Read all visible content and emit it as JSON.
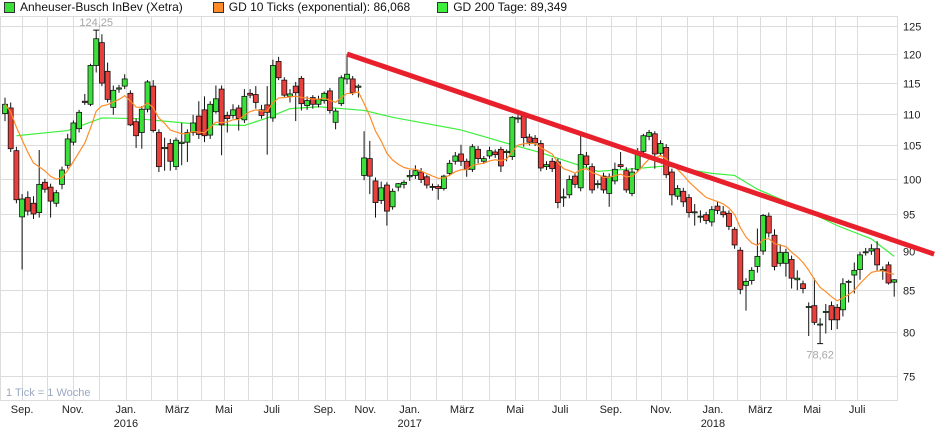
{
  "legend": {
    "series_label": "Anheuser-Busch InBev (Xetra)",
    "ema_label": "GD 10 Ticks (exponential): 86,068",
    "sma_label": "GD 200 Tage: 89,349"
  },
  "colors": {
    "up": "#3be03b",
    "down": "#e8403c",
    "ema": "#ff8c28",
    "sma": "#3cf03c",
    "trendline": "#e8202c",
    "grid": "#dcdcdc"
  },
  "chart_data": {
    "type": "candlestick",
    "scale": "log",
    "interval_note": "1 Tick = 1 Woche",
    "ylim": [
      72.4,
      126.8
    ],
    "yticks": [
      75,
      80,
      85,
      90,
      95,
      100,
      105,
      110,
      115,
      120,
      125
    ],
    "grid": true,
    "legend_position": "top",
    "xticks": [
      {
        "label": "Sep.",
        "year": "",
        "week": 4
      },
      {
        "label": "Nov.",
        "year": "",
        "week": 12.9
      },
      {
        "label": "Jan.",
        "year": "2016",
        "week": 22.2
      },
      {
        "label": "März",
        "year": "",
        "week": 31.2
      },
      {
        "label": "Mai",
        "year": "",
        "week": 39.4
      },
      {
        "label": "Juli",
        "year": "",
        "week": 47.8
      },
      {
        "label": "Sep.",
        "year": "",
        "week": 57.1
      },
      {
        "label": "Nov.",
        "year": "",
        "week": 64.2
      },
      {
        "label": "Jan.",
        "year": "2017",
        "week": 72
      },
      {
        "label": "März",
        "year": "",
        "week": 81.2
      },
      {
        "label": "Mai",
        "year": "",
        "week": 90.5
      },
      {
        "label": "Juli",
        "year": "",
        "week": 98.4
      },
      {
        "label": "Sep.",
        "year": "",
        "week": 107.3
      },
      {
        "label": "Nov.",
        "year": "",
        "week": 116.1
      },
      {
        "label": "Jan.",
        "year": "2018",
        "week": 125.2
      },
      {
        "label": "März",
        "year": "",
        "week": 133.5
      },
      {
        "label": "Mai",
        "year": "",
        "week": 142.6
      },
      {
        "label": "Juli",
        "year": "",
        "week": 150.5
      }
    ],
    "annotations": {
      "max": {
        "label": "124,25",
        "week": 17,
        "value": 124.25
      },
      "min": {
        "label": "78,62",
        "week": 144,
        "value": 78.62
      }
    },
    "ohlc_fields": [
      "open",
      "high",
      "low",
      "close"
    ],
    "ohlc": [
      [
        110,
        112.6,
        108.8,
        111.5
      ],
      [
        110.9,
        111.8,
        104,
        104.5
      ],
      [
        104.2,
        104.8,
        96.5,
        97
      ],
      [
        94.6,
        97.8,
        87.6,
        97.1
      ],
      [
        97.3,
        98.2,
        94.8,
        95.4
      ],
      [
        96.5,
        97.5,
        94.3,
        95
      ],
      [
        95.2,
        104.3,
        94.5,
        99.2
      ],
      [
        99.5,
        100,
        98,
        98.5
      ],
      [
        98.8,
        99.3,
        94.5,
        96.8
      ],
      [
        96.5,
        98.4,
        96,
        98
      ],
      [
        99.2,
        101.8,
        98.5,
        101.3
      ],
      [
        102,
        106.8,
        101.5,
        106
      ],
      [
        105.5,
        108.9,
        105,
        108.5
      ],
      [
        107.6,
        110.6,
        107,
        110.2
      ],
      [
        112,
        113.2,
        111.4,
        111.8
      ],
      [
        111.5,
        118.3,
        111.2,
        118
      ],
      [
        118,
        124.25,
        116.8,
        122.7
      ],
      [
        122,
        123.5,
        114.5,
        115
      ],
      [
        117,
        118.5,
        111.8,
        112.3
      ],
      [
        111,
        114.6,
        109.8,
        113.8
      ],
      [
        114,
        114.7,
        113.4,
        114.2
      ],
      [
        114.5,
        116.5,
        114,
        115.7
      ],
      [
        113.3,
        113.8,
        108,
        108.2
      ],
      [
        108.7,
        109.2,
        104.6,
        106.5
      ],
      [
        107,
        111.2,
        104.5,
        110.7
      ],
      [
        110.7,
        115.5,
        110.2,
        115.2
      ],
      [
        114.5,
        115.5,
        107,
        107.3
      ],
      [
        107,
        107.5,
        101,
        101.8
      ],
      [
        104.5,
        106.2,
        101.2,
        104.7
      ],
      [
        105.3,
        106,
        101.2,
        102.6
      ],
      [
        101.8,
        106.2,
        101.3,
        105.8
      ],
      [
        105.3,
        108.5,
        102,
        105.5
      ],
      [
        105.5,
        107.5,
        102.5,
        107
      ],
      [
        107,
        109.8,
        106.5,
        108.5
      ],
      [
        109.6,
        112,
        106,
        106.7
      ],
      [
        110.6,
        112.8,
        105.5,
        106.5
      ],
      [
        106.6,
        112,
        106,
        111.5
      ],
      [
        110.3,
        114.6,
        110,
        112.4
      ],
      [
        114,
        114.6,
        103.5,
        108.2
      ],
      [
        109.7,
        110.3,
        107,
        109.2
      ],
      [
        109.7,
        111.5,
        109.2,
        110.6
      ],
      [
        110.9,
        111.4,
        107.3,
        109.2
      ],
      [
        109,
        114,
        108.5,
        112.8
      ],
      [
        113.3,
        114,
        112.5,
        113
      ],
      [
        113.1,
        114.5,
        110.8,
        111.8
      ],
      [
        110.6,
        111.4,
        109.2,
        109.7
      ],
      [
        111.4,
        114.5,
        103.6,
        110.2
      ],
      [
        109.3,
        119,
        108.7,
        118
      ],
      [
        118.7,
        119.5,
        115.5,
        115.9
      ],
      [
        115.5,
        116,
        112.7,
        113
      ],
      [
        112.8,
        114,
        111.8,
        113.2
      ],
      [
        114.5,
        115.2,
        108.8,
        113.4
      ],
      [
        115.8,
        116.2,
        110.5,
        111.6
      ],
      [
        111.3,
        112.8,
        110.6,
        112.1
      ],
      [
        112.6,
        113,
        110.8,
        111.5
      ],
      [
        111.5,
        112.9,
        111,
        112.3
      ],
      [
        112.1,
        113.6,
        111.6,
        113.3
      ],
      [
        113.7,
        114.2,
        110,
        110.5
      ],
      [
        108.6,
        110.8,
        107.5,
        110.4
      ],
      [
        111.6,
        116.3,
        111.2,
        115.9
      ],
      [
        115.7,
        120,
        114.8,
        116.5
      ],
      [
        115.7,
        116.2,
        113,
        113.4
      ],
      [
        114.3,
        114.8,
        112.6,
        114.5
      ],
      [
        100.5,
        107.2,
        99.8,
        103.1
      ],
      [
        103,
        105.7,
        97.8,
        100.4
      ],
      [
        99.7,
        100.2,
        94.5,
        96.6
      ],
      [
        96.9,
        99.6,
        96.4,
        98.7
      ],
      [
        99.1,
        99.5,
        93.4,
        95.4
      ],
      [
        96,
        98.6,
        95.6,
        98.2
      ],
      [
        98.8,
        99.4,
        98.2,
        99.3
      ],
      [
        99.2,
        99.8,
        98.6,
        99.5
      ],
      [
        100.3,
        101.3,
        99.7,
        100.5
      ],
      [
        100.5,
        102,
        100,
        101.2
      ],
      [
        101,
        101.6,
        99.4,
        99.9
      ],
      [
        100.3,
        100.6,
        98.6,
        99.1
      ],
      [
        98.9,
        99.3,
        98.3,
        98.8
      ],
      [
        98.9,
        99.2,
        97,
        98.6
      ],
      [
        98.6,
        100.6,
        98.3,
        100.4
      ],
      [
        100.8,
        102.8,
        100.4,
        102.3
      ],
      [
        102.6,
        104,
        102.1,
        103.4
      ],
      [
        103.7,
        105.1,
        101.9,
        102.6
      ],
      [
        102.6,
        103,
        100.3,
        101.4
      ],
      [
        101.4,
        105.2,
        101,
        104.8
      ],
      [
        104.4,
        104.9,
        102.3,
        103
      ],
      [
        102.6,
        103.4,
        102.2,
        103
      ],
      [
        103.4,
        104.8,
        103,
        104.2
      ],
      [
        104,
        104.4,
        103.1,
        103.6
      ],
      [
        104.4,
        104.8,
        101,
        101.9
      ],
      [
        103.9,
        104.4,
        102.6,
        104.1
      ],
      [
        103.3,
        109.6,
        102.8,
        109.4
      ],
      [
        109.3,
        110,
        108.5,
        109.3
      ],
      [
        109.6,
        110,
        104.8,
        106.2
      ],
      [
        106.3,
        106.8,
        105,
        105.5
      ],
      [
        106.1,
        106.6,
        104.9,
        105.4
      ],
      [
        105.3,
        105.8,
        101.1,
        101.6
      ],
      [
        101.8,
        102.6,
        101.3,
        102.1
      ],
      [
        102.6,
        103.1,
        101,
        101.5
      ],
      [
        102.5,
        103,
        95.8,
        96.6
      ],
      [
        97.4,
        98.6,
        96,
        97.4
      ],
      [
        97.7,
        100.5,
        97.2,
        99.9
      ],
      [
        100.4,
        100.9,
        98.7,
        99.2
      ],
      [
        98.7,
        106.5,
        98.2,
        103.6
      ],
      [
        103.4,
        104,
        101.7,
        102.1
      ],
      [
        101.8,
        102.3,
        97.9,
        98.4
      ],
      [
        99.3,
        99.8,
        98.6,
        99.3
      ],
      [
        100.4,
        100.9,
        97.9,
        98.4
      ],
      [
        97.9,
        100.8,
        96,
        100.3
      ],
      [
        99.7,
        102.4,
        99.2,
        101.4
      ],
      [
        102.1,
        104,
        101.5,
        101.8
      ],
      [
        101.2,
        101.7,
        98,
        98.4
      ],
      [
        97.9,
        101.6,
        97.5,
        101
      ],
      [
        101.4,
        104.6,
        101,
        104
      ],
      [
        104.1,
        106.8,
        103.6,
        106.5
      ],
      [
        106.4,
        107.4,
        105.8,
        107
      ],
      [
        106.8,
        107.2,
        101.5,
        103.7
      ],
      [
        103.8,
        105.8,
        103.3,
        105.3
      ],
      [
        104.7,
        105.2,
        100.1,
        100.6
      ],
      [
        101,
        101.5,
        96.2,
        97.7
      ],
      [
        97.5,
        99.1,
        97,
        98.6
      ],
      [
        98.2,
        98.7,
        96,
        96.7
      ],
      [
        97.3,
        97.8,
        94.5,
        95.2
      ],
      [
        95.3,
        96.4,
        93.4,
        95.3
      ],
      [
        94.7,
        95.5,
        93.8,
        94.7
      ],
      [
        94.9,
        95.3,
        93.6,
        94.1
      ],
      [
        93.9,
        96.1,
        93.3,
        95.6
      ],
      [
        96.1,
        96.7,
        95,
        95.5
      ],
      [
        95.3,
        96.1,
        94.5,
        94.9
      ],
      [
        95.1,
        95.5,
        92.8,
        93.3
      ],
      [
        92.9,
        93.2,
        90.3,
        90.8
      ],
      [
        90.1,
        90.5,
        84.5,
        85.1
      ],
      [
        85.6,
        86.5,
        82.5,
        86.1
      ],
      [
        86.2,
        87.9,
        85.7,
        87.5
      ],
      [
        88,
        93,
        87.2,
        89.3
      ],
      [
        90,
        95,
        89.5,
        94.8
      ],
      [
        94.7,
        95.2,
        91.8,
        92.4
      ],
      [
        92.1,
        92.9,
        87.5,
        88
      ],
      [
        88.4,
        90.9,
        88,
        89.8
      ],
      [
        88.4,
        90.3,
        86.7,
        89.8
      ],
      [
        88.9,
        89.4,
        85.2,
        86.5
      ],
      [
        86.3,
        87.5,
        85,
        86.5
      ],
      [
        85.8,
        86.2,
        84.6,
        85.2
      ],
      [
        83,
        83.5,
        79.5,
        83
      ],
      [
        83.1,
        86.5,
        80.8,
        81.1
      ],
      [
        80.9,
        81.6,
        78.62,
        80.9
      ],
      [
        82.4,
        83.3,
        79.8,
        82.4
      ],
      [
        83.1,
        83.6,
        80.2,
        81.4
      ],
      [
        82.9,
        83.3,
        80.3,
        81.4
      ],
      [
        82.6,
        86.5,
        81.8,
        85.8
      ],
      [
        86,
        86.3,
        83.5,
        86.1
      ],
      [
        86.9,
        88.5,
        84.6,
        87.5
      ],
      [
        87.6,
        89.9,
        86.3,
        89.5
      ],
      [
        89.9,
        90.4,
        89.4,
        89.9
      ],
      [
        90,
        90.9,
        89.5,
        90.3
      ],
      [
        90.3,
        91.3,
        87.5,
        88.2
      ],
      [
        87.6,
        88,
        86.3,
        87.6
      ],
      [
        88.2,
        88.6,
        85.7,
        85.9
      ],
      [
        86,
        86.4,
        84.2,
        86.3
      ]
    ],
    "gd200": [
      [
        3,
        106.5
      ],
      [
        12,
        107.3
      ],
      [
        18,
        109.3
      ],
      [
        24,
        109.2
      ],
      [
        35,
        108.3
      ],
      [
        43,
        108.1
      ],
      [
        47,
        109.3
      ],
      [
        51,
        110.8
      ],
      [
        56,
        111.1
      ],
      [
        64,
        110.5
      ],
      [
        69,
        109.4
      ],
      [
        81,
        107.4
      ],
      [
        90,
        105.1
      ],
      [
        95,
        103.9
      ],
      [
        101,
        102.2
      ],
      [
        105,
        101.1
      ],
      [
        110,
        101.4
      ],
      [
        117,
        101.9
      ],
      [
        125,
        100.8
      ],
      [
        129,
        100.5
      ],
      [
        133,
        98.5
      ],
      [
        141,
        95.7
      ],
      [
        147,
        93.4
      ],
      [
        153,
        91.6
      ],
      [
        157,
        89.3
      ]
    ],
    "ema_period": 10,
    "trendline": [
      [
        61,
        120
      ],
      [
        164,
        89.6
      ]
    ]
  }
}
